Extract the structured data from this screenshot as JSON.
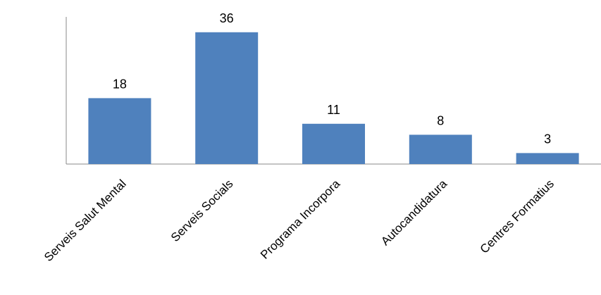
{
  "chart_data": {
    "type": "bar",
    "categories": [
      "Serveis Salut Mental",
      "Serveis Socials",
      "Programa Incorpora",
      "Autocandidatura",
      "Centres Formatius"
    ],
    "values": [
      18,
      36,
      11,
      8,
      3
    ],
    "title": "",
    "xlabel": "",
    "ylabel": "",
    "ylim": [
      0,
      40
    ],
    "grid": false,
    "legend": "none",
    "bar_color": "#4F81BD",
    "axis_color": "#888888",
    "data_labels": [
      "18",
      "36",
      "11",
      "8",
      "3"
    ]
  }
}
